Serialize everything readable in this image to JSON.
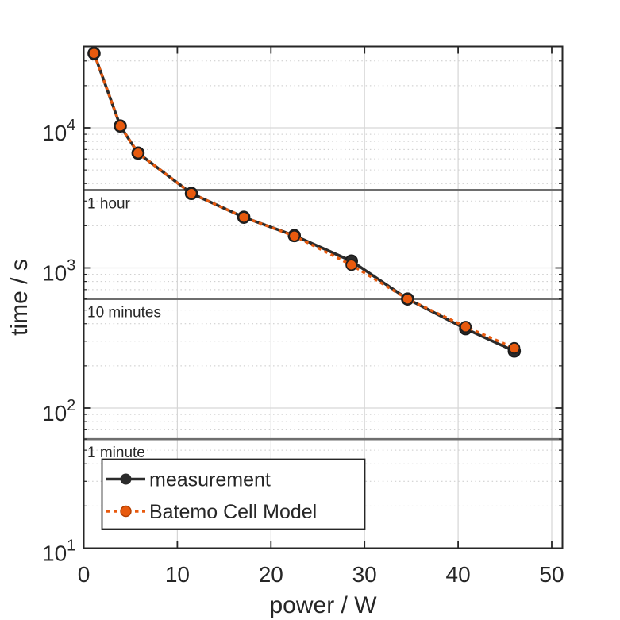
{
  "background": "#ffffff",
  "axis_color": "#262626",
  "grid_color": "#d6d6d6",
  "minor_grid_color": "#c9c9c9",
  "chart_data": {
    "type": "line",
    "title": "",
    "xlabel": "power / W",
    "ylabel": "time / s",
    "x_axis": {
      "min": 0,
      "max": 51,
      "ticks": [
        0,
        10,
        20,
        30,
        40,
        50
      ]
    },
    "y_axis": {
      "scale": "log10",
      "min": 10,
      "max": 38000,
      "ticks": [
        10,
        100,
        1000,
        10000
      ],
      "minor_multipliers": [
        2,
        3,
        4,
        5,
        6,
        7,
        8,
        9
      ]
    },
    "grid": {
      "major": "solid",
      "minor": "dotted"
    },
    "legend_position": "lower-left",
    "x": [
      1.1,
      3.9,
      5.8,
      11.5,
      17.1,
      22.5,
      28.6,
      34.6,
      40.8,
      46.0
    ],
    "series": [
      {
        "name": "measurement",
        "color": "#2b2b2b",
        "line_style": "solid",
        "marker": "filled-circle",
        "values": [
          34000,
          10300,
          6600,
          3400,
          2300,
          1700,
          1120,
          600,
          368,
          255
        ]
      },
      {
        "name": "Batemo Cell Model",
        "color": "#e85a0e",
        "line_style": "dotted",
        "marker": "filled-circle",
        "values": [
          34000,
          10300,
          6600,
          3400,
          2300,
          1690,
          1050,
          600,
          380,
          268
        ]
      }
    ],
    "reference_lines": [
      {
        "label": "1 hour",
        "value_s": 3600
      },
      {
        "label": "10 minutes",
        "value_s": 600
      },
      {
        "label": "1 minute",
        "value_s": 60
      }
    ],
    "reference_line_color": "#6e6e6e",
    "reference_label_color": "#8a8a8a"
  }
}
